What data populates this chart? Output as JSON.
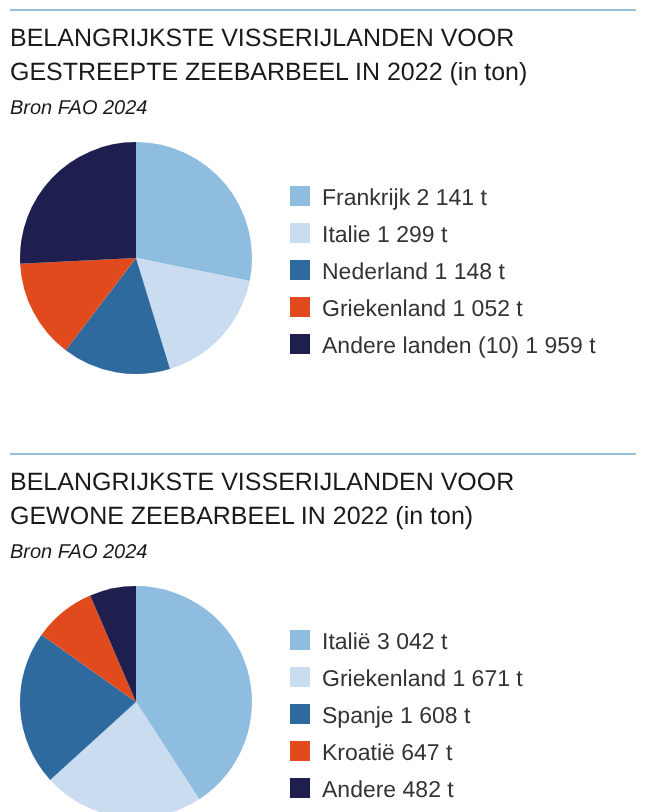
{
  "chart_data": [
    {
      "type": "pie",
      "title": "BELANGRIJKSTE VISSERIJLANDEN VOOR GESTREEPTE ZEEBARBEEL IN 2022 (in ton)",
      "annotations": [
        "Bron FAO 2024"
      ],
      "categories": [
        "Frankrijk",
        "Italie",
        "Nederland",
        "Griekenland",
        "Andere landen (10)"
      ],
      "values": [
        2141,
        1299,
        1148,
        1052,
        1959
      ],
      "value_labels": [
        "2 141 t",
        "1 299 t",
        "1 148 t",
        "1 052 t",
        "1 959 t"
      ],
      "colors": [
        "#8fbde0",
        "#c9dcf0",
        "#2f6a9e",
        "#e04a1d",
        "#1e1f4f"
      ],
      "legend": "right"
    },
    {
      "type": "pie",
      "title": "BELANGRIJKSTE VISSERIJLANDEN VOOR GEWONE ZEEBARBEEL IN 2022 (in ton)",
      "annotations": [
        "Bron FAO 2024"
      ],
      "categories": [
        "Italië",
        "Griekenland",
        "Spanje",
        "Kroatië",
        "Andere"
      ],
      "values": [
        3042,
        1671,
        1608,
        647,
        482
      ],
      "value_labels": [
        "3 042 t",
        "1 671 t",
        "1 608 t",
        "647 t",
        "482 t"
      ],
      "colors": [
        "#8fbde0",
        "#c9dcf0",
        "#2f6a9e",
        "#e04a1d",
        "#1e1f4f"
      ],
      "legend": "right"
    }
  ]
}
